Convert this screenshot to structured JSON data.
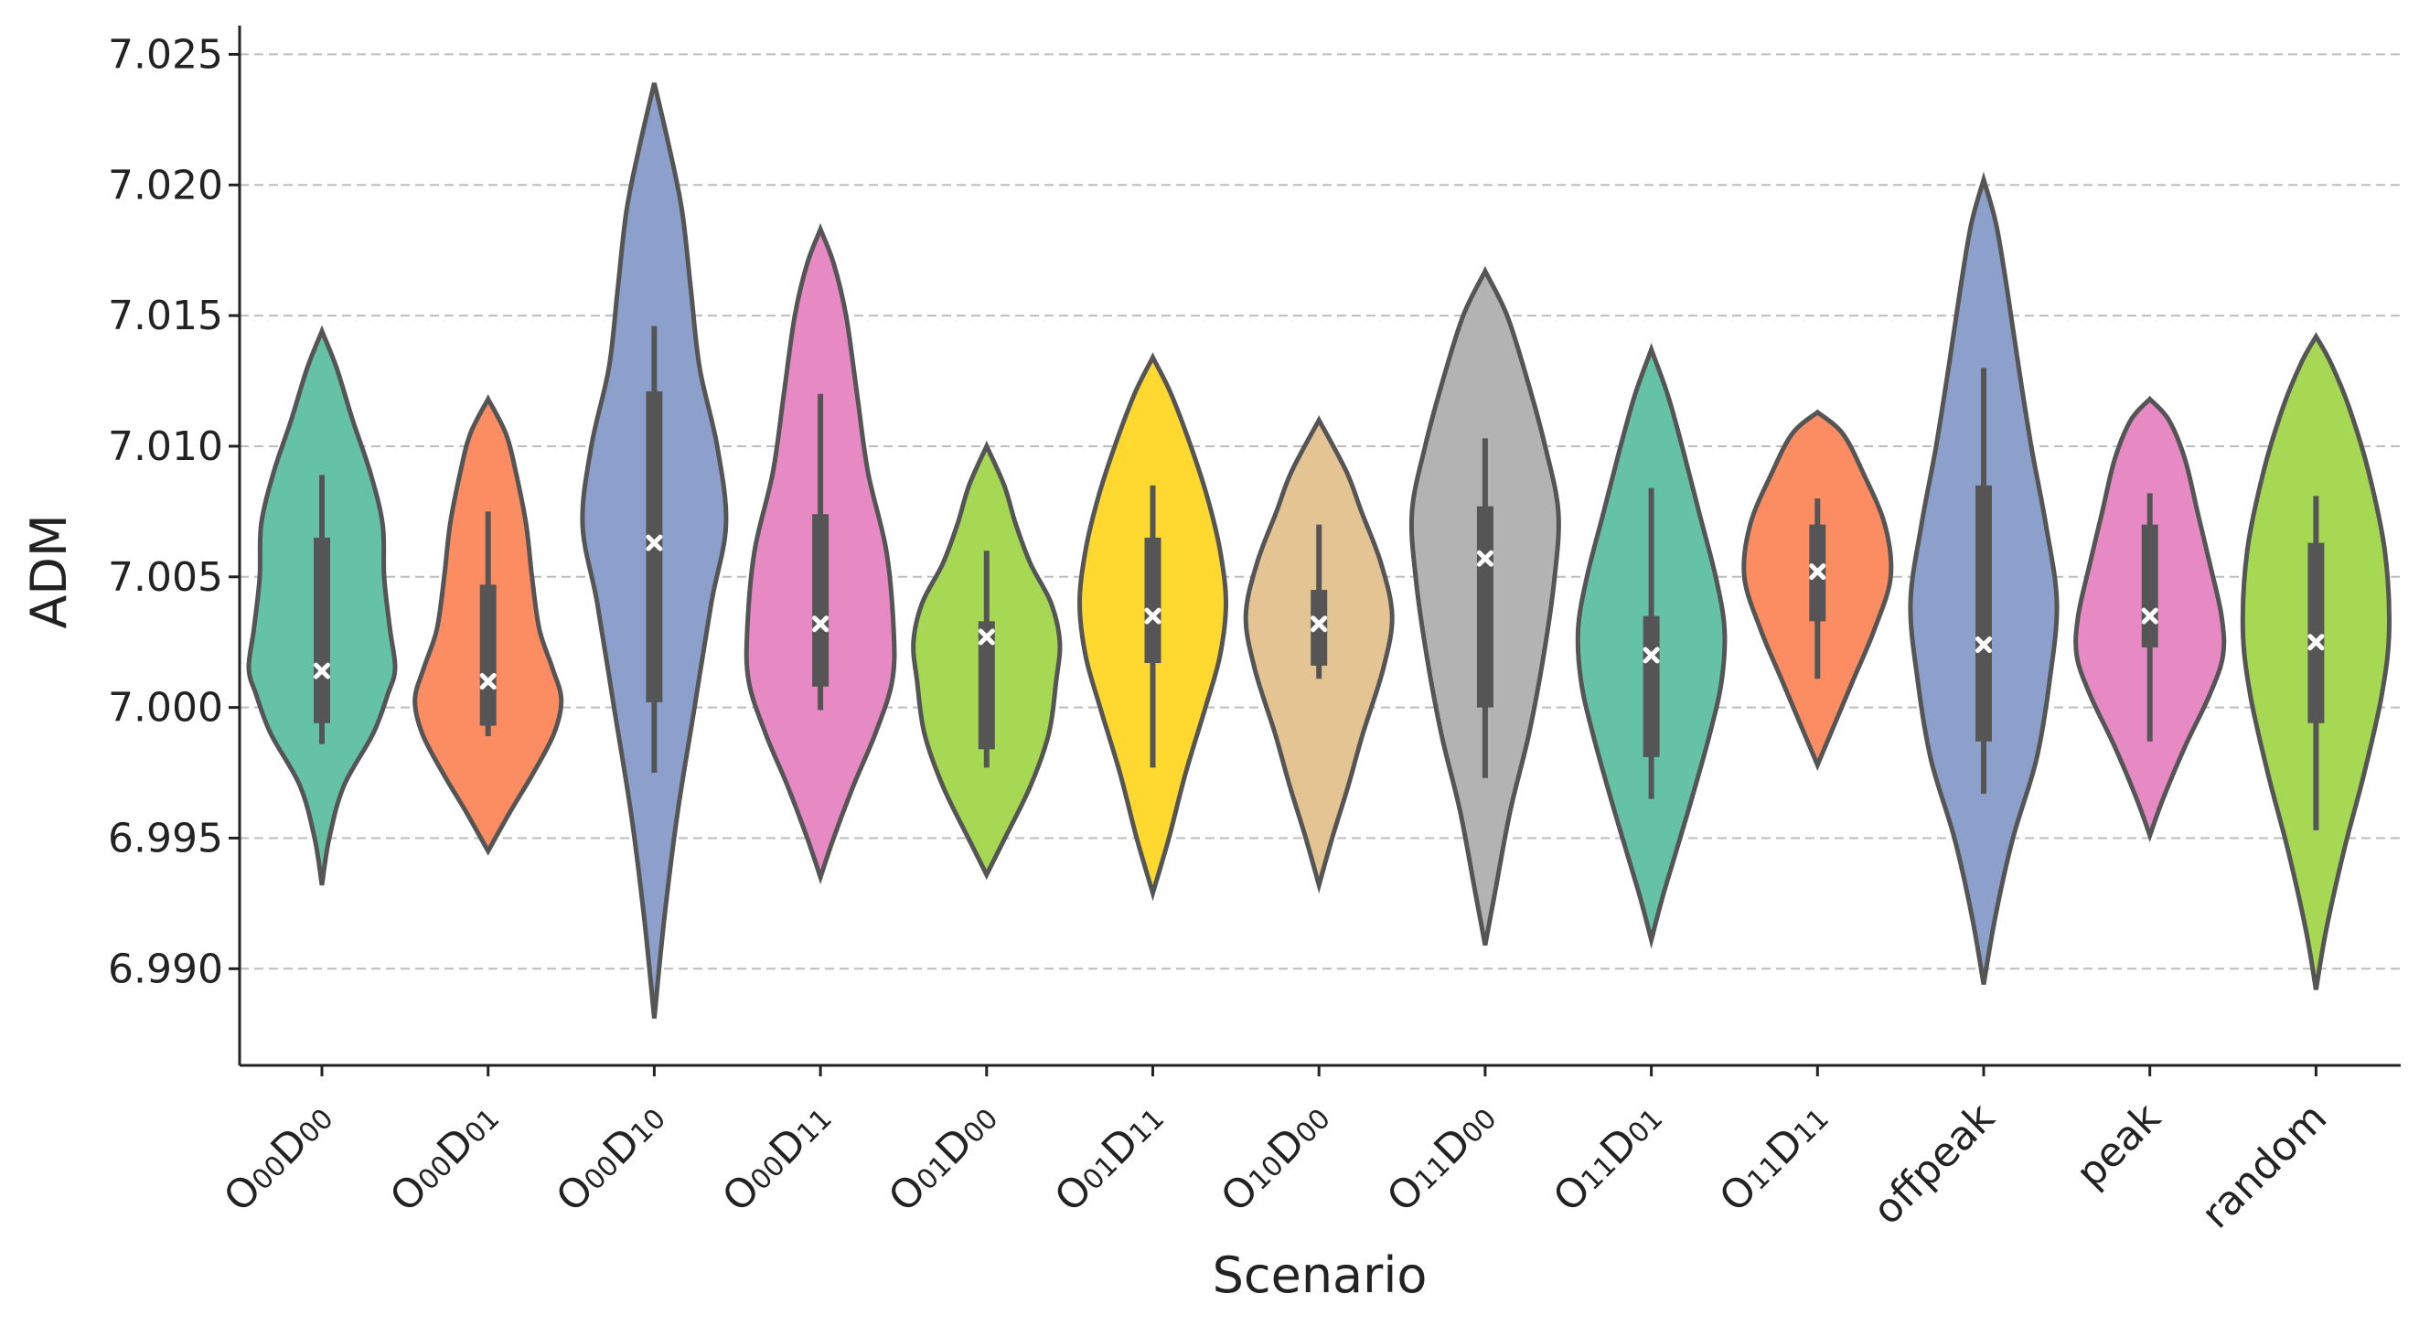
{
  "chart_data": {
    "type": "violin",
    "xlabel": "Scenario",
    "ylabel": "ADM",
    "ylim": [
      6.9863,
      7.0261
    ],
    "yticks": [
      "6.990",
      "6.995",
      "7.000",
      "7.005",
      "7.010",
      "7.015",
      "7.020",
      "7.025"
    ],
    "grid": "horizontal dashed",
    "series": [
      {
        "name": "O00D00",
        "main": "O",
        "sub1": "00",
        "mid": "D",
        "sub2": "00",
        "color": "#66c2a5",
        "kde_min": 6.9932,
        "kde_max": 7.0144,
        "whisker_low": 6.9986,
        "whisker_high": 7.0089,
        "q1": 6.9994,
        "q3": 7.0065,
        "mean": 7.0014,
        "profile": [
          [
            6.9932,
            0
          ],
          [
            6.995,
            0.1
          ],
          [
            6.997,
            0.3
          ],
          [
            6.999,
            0.7
          ],
          [
            7.0005,
            0.9
          ],
          [
            7.0015,
            1.0
          ],
          [
            7.003,
            0.93
          ],
          [
            7.005,
            0.85
          ],
          [
            7.007,
            0.83
          ],
          [
            7.009,
            0.66
          ],
          [
            7.011,
            0.42
          ],
          [
            7.013,
            0.2
          ],
          [
            7.0144,
            0
          ]
        ]
      },
      {
        "name": "O00D01",
        "main": "O",
        "sub1": "00",
        "mid": "D",
        "sub2": "01",
        "color": "#fc8d62",
        "kde_min": 6.9945,
        "kde_max": 7.0118,
        "whisker_low": 6.9989,
        "whisker_high": 7.0075,
        "q1": 6.9993,
        "q3": 7.0047,
        "mean": 7.001,
        "profile": [
          [
            6.9945,
            0
          ],
          [
            6.996,
            0.3
          ],
          [
            6.9975,
            0.62
          ],
          [
            6.999,
            0.9
          ],
          [
            7.0003,
            1.0
          ],
          [
            7.0015,
            0.88
          ],
          [
            7.003,
            0.7
          ],
          [
            7.005,
            0.6
          ],
          [
            7.007,
            0.52
          ],
          [
            7.009,
            0.38
          ],
          [
            7.0105,
            0.24
          ],
          [
            7.0118,
            0
          ]
        ]
      },
      {
        "name": "O00D10",
        "main": "O",
        "sub1": "00",
        "mid": "D",
        "sub2": "10",
        "color": "#8da0cb",
        "kde_min": 6.9881,
        "kde_max": 7.0239,
        "whisker_low": 6.9975,
        "whisker_high": 7.0146,
        "q1": 7.0002,
        "q3": 7.0121,
        "mean": 7.0063,
        "profile": [
          [
            6.9881,
            0
          ],
          [
            6.992,
            0.14
          ],
          [
            6.996,
            0.32
          ],
          [
            7.0,
            0.55
          ],
          [
            7.004,
            0.78
          ],
          [
            7.007,
            0.98
          ],
          [
            7.01,
            0.86
          ],
          [
            7.013,
            0.62
          ],
          [
            7.016,
            0.5
          ],
          [
            7.019,
            0.38
          ],
          [
            7.0215,
            0.2
          ],
          [
            7.0239,
            0
          ]
        ]
      },
      {
        "name": "O00D11",
        "main": "O",
        "sub1": "00",
        "mid": "D",
        "sub2": "11",
        "color": "#e78ac3",
        "kde_min": 6.9935,
        "kde_max": 7.0183,
        "whisker_low": 6.9999,
        "whisker_high": 7.012,
        "q1": 7.0008,
        "q3": 7.0074,
        "mean": 7.0032,
        "profile": [
          [
            6.9935,
            0
          ],
          [
            6.995,
            0.18
          ],
          [
            6.997,
            0.45
          ],
          [
            6.999,
            0.75
          ],
          [
            7.001,
            0.98
          ],
          [
            7.003,
            1.0
          ],
          [
            7.006,
            0.9
          ],
          [
            7.009,
            0.65
          ],
          [
            7.012,
            0.5
          ],
          [
            7.015,
            0.35
          ],
          [
            7.017,
            0.18
          ],
          [
            7.0183,
            0
          ]
        ]
      },
      {
        "name": "O01D00",
        "main": "O",
        "sub1": "01",
        "mid": "D",
        "sub2": "00",
        "color": "#a6d854",
        "kde_min": 6.9936,
        "kde_max": 7.01,
        "whisker_low": 6.9977,
        "whisker_high": 7.006,
        "q1": 6.9984,
        "q3": 7.0033,
        "mean": 7.0027,
        "profile": [
          [
            6.9936,
            0
          ],
          [
            6.995,
            0.25
          ],
          [
            6.997,
            0.6
          ],
          [
            6.999,
            0.85
          ],
          [
            7.001,
            0.95
          ],
          [
            7.0025,
            1.0
          ],
          [
            7.004,
            0.88
          ],
          [
            7.0055,
            0.6
          ],
          [
            7.007,
            0.4
          ],
          [
            7.0085,
            0.24
          ],
          [
            7.01,
            0
          ]
        ]
      },
      {
        "name": "O01D11",
        "main": "O",
        "sub1": "01",
        "mid": "D",
        "sub2": "11",
        "color": "#ffd92f",
        "kde_min": 6.9929,
        "kde_max": 7.0134,
        "whisker_low": 6.9977,
        "whisker_high": 7.0085,
        "q1": 7.0017,
        "q3": 7.0065,
        "mean": 7.0035,
        "profile": [
          [
            6.9929,
            0
          ],
          [
            6.995,
            0.22
          ],
          [
            6.9975,
            0.45
          ],
          [
            7.0,
            0.72
          ],
          [
            7.002,
            0.92
          ],
          [
            7.004,
            1.0
          ],
          [
            7.006,
            0.92
          ],
          [
            7.008,
            0.75
          ],
          [
            7.01,
            0.52
          ],
          [
            7.012,
            0.25
          ],
          [
            7.0134,
            0
          ]
        ]
      },
      {
        "name": "O10D00",
        "main": "O",
        "sub1": "10",
        "mid": "D",
        "sub2": "00",
        "color": "#e5c494",
        "kde_min": 6.9932,
        "kde_max": 7.011,
        "whisker_low": 7.0011,
        "whisker_high": 7.007,
        "q1": 7.0016,
        "q3": 7.0045,
        "mean": 7.0032,
        "profile": [
          [
            6.9932,
            0
          ],
          [
            6.995,
            0.18
          ],
          [
            6.997,
            0.4
          ],
          [
            6.999,
            0.6
          ],
          [
            7.0015,
            0.88
          ],
          [
            7.0035,
            1.0
          ],
          [
            7.0055,
            0.85
          ],
          [
            7.0075,
            0.58
          ],
          [
            7.009,
            0.38
          ],
          [
            7.011,
            0
          ]
        ]
      },
      {
        "name": "O11D00",
        "main": "O",
        "sub1": "11",
        "mid": "D",
        "sub2": "00",
        "color": "#b3b3b3",
        "kde_min": 6.9909,
        "kde_max": 7.0167,
        "whisker_low": 6.9973,
        "whisker_high": 7.0103,
        "q1": 7.0,
        "q3": 7.0077,
        "mean": 7.0057,
        "profile": [
          [
            6.9909,
            0
          ],
          [
            6.993,
            0.14
          ],
          [
            6.996,
            0.34
          ],
          [
            6.999,
            0.6
          ],
          [
            7.002,
            0.8
          ],
          [
            7.005,
            0.95
          ],
          [
            7.0075,
            1.0
          ],
          [
            7.01,
            0.82
          ],
          [
            7.0125,
            0.58
          ],
          [
            7.015,
            0.3
          ],
          [
            7.0167,
            0
          ]
        ]
      },
      {
        "name": "O11D01",
        "main": "O",
        "sub1": "11",
        "mid": "D",
        "sub2": "01",
        "color": "#66c2a5",
        "kde_min": 6.9911,
        "kde_max": 7.0137,
        "whisker_low": 6.9965,
        "whisker_high": 7.0084,
        "q1": 6.9981,
        "q3": 7.0035,
        "mean": 7.002,
        "profile": [
          [
            6.9911,
            0
          ],
          [
            6.993,
            0.18
          ],
          [
            6.996,
            0.5
          ],
          [
            6.999,
            0.8
          ],
          [
            7.001,
            0.96
          ],
          [
            7.003,
            1.0
          ],
          [
            7.005,
            0.88
          ],
          [
            7.0075,
            0.65
          ],
          [
            7.01,
            0.42
          ],
          [
            7.012,
            0.22
          ],
          [
            7.0137,
            0
          ]
        ]
      },
      {
        "name": "O11D11",
        "main": "O",
        "sub1": "11",
        "mid": "D",
        "sub2": "11",
        "color": "#fc8d62",
        "kde_min": 6.9978,
        "kde_max": 7.0113,
        "whisker_low": 7.0011,
        "whisker_high": 7.008,
        "q1": 7.0033,
        "q3": 7.007,
        "mean": 7.0052,
        "profile": [
          [
            6.9978,
            0
          ],
          [
            6.999,
            0.18
          ],
          [
            7.001,
            0.48
          ],
          [
            7.003,
            0.78
          ],
          [
            7.005,
            1.0
          ],
          [
            7.007,
            0.92
          ],
          [
            7.009,
            0.62
          ],
          [
            7.0105,
            0.34
          ],
          [
            7.0113,
            0
          ]
        ]
      },
      {
        "name": "offpeak",
        "label": "offpeak",
        "color": "#8da0cb",
        "kde_min": 6.9894,
        "kde_max": 7.0202,
        "whisker_low": 6.9967,
        "whisker_high": 7.013,
        "q1": 6.9987,
        "q3": 7.0085,
        "mean": 7.0024,
        "profile": [
          [
            6.9894,
            0
          ],
          [
            6.992,
            0.16
          ],
          [
            6.995,
            0.4
          ],
          [
            6.998,
            0.72
          ],
          [
            7.001,
            0.9
          ],
          [
            7.004,
            1.0
          ],
          [
            7.007,
            0.85
          ],
          [
            7.01,
            0.65
          ],
          [
            7.013,
            0.48
          ],
          [
            7.016,
            0.32
          ],
          [
            7.0185,
            0.17
          ],
          [
            7.0202,
            0
          ]
        ]
      },
      {
        "name": "peak",
        "label": "peak",
        "color": "#e78ac3",
        "kde_min": 6.9951,
        "kde_max": 7.0118,
        "whisker_low": 6.9987,
        "whisker_high": 7.0082,
        "q1": 7.0023,
        "q3": 7.007,
        "mean": 7.0035,
        "profile": [
          [
            6.9951,
            0
          ],
          [
            6.9965,
            0.18
          ],
          [
            6.9985,
            0.48
          ],
          [
            7.0005,
            0.82
          ],
          [
            7.002,
            1.0
          ],
          [
            7.0035,
            0.98
          ],
          [
            7.0055,
            0.82
          ],
          [
            7.0075,
            0.65
          ],
          [
            7.0095,
            0.48
          ],
          [
            7.011,
            0.26
          ],
          [
            7.0118,
            0
          ]
        ]
      },
      {
        "name": "random",
        "label": "random",
        "color": "#a6d854",
        "kde_min": 6.9892,
        "kde_max": 7.0142,
        "whisker_low": 6.9953,
        "whisker_high": 7.0081,
        "q1": 6.9994,
        "q3": 7.0063,
        "mean": 7.0025,
        "profile": [
          [
            6.9892,
            0
          ],
          [
            6.9915,
            0.14
          ],
          [
            6.9945,
            0.38
          ],
          [
            6.9975,
            0.66
          ],
          [
            7.0005,
            0.9
          ],
          [
            7.003,
            1.0
          ],
          [
            7.006,
            0.94
          ],
          [
            7.009,
            0.72
          ],
          [
            7.0115,
            0.45
          ],
          [
            7.0132,
            0.2
          ],
          [
            7.0142,
            0
          ]
        ]
      }
    ]
  }
}
